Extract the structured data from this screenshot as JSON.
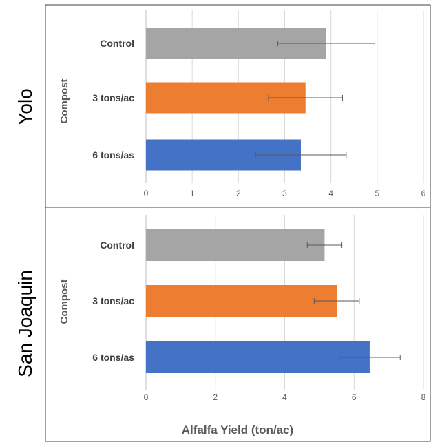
{
  "figure": {
    "xlabel": "Alfalfa Yield (ton/ac)"
  },
  "chart_data": [
    {
      "type": "bar",
      "orientation": "horizontal",
      "region": "Yolo",
      "ylabel": "Compost",
      "xlim": [
        0,
        6
      ],
      "xticks": [
        "0",
        "1",
        "2",
        "3",
        "4",
        "5",
        "6"
      ],
      "grid": true,
      "categories": [
        "Control",
        "3 tons/ac",
        "6 tons/as"
      ],
      "values": [
        3.9,
        3.45,
        3.35
      ],
      "errors": [
        1.05,
        0.8,
        0.98
      ],
      "colors": [
        "#a5a5a5",
        "#ed7d31",
        "#4472c4"
      ]
    },
    {
      "type": "bar",
      "orientation": "horizontal",
      "region": "San Joaquin",
      "ylabel": "Compost",
      "xlim": [
        0,
        8
      ],
      "xticks": [
        "0",
        "2",
        "4",
        "6",
        "8"
      ],
      "grid": true,
      "categories": [
        "Control",
        "3 tons/ac",
        "6 tons/as"
      ],
      "values": [
        5.15,
        5.5,
        6.45
      ],
      "errors": [
        0.5,
        0.65,
        0.88
      ],
      "colors": [
        "#a5a5a5",
        "#ed7d31",
        "#4472c4"
      ]
    }
  ]
}
